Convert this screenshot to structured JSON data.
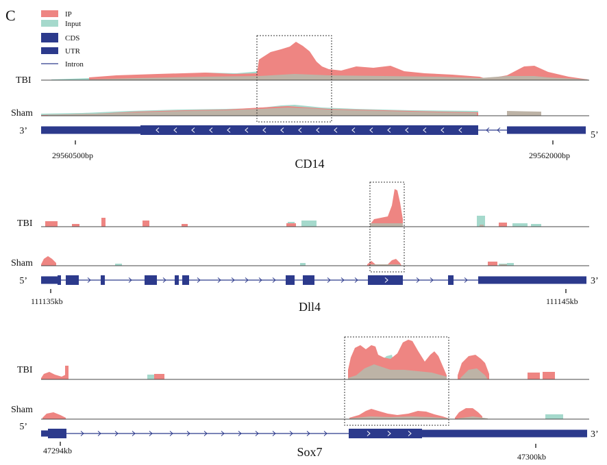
{
  "panel_label": "C",
  "colors": {
    "ip": "#EE8582",
    "input": "#A5D9CC",
    "overlap": "#BDB3A6",
    "gene": "#2C3A8C",
    "baseline": "#444444",
    "box": "#333333"
  },
  "legend": [
    {
      "label": "IP",
      "kind": "ip"
    },
    {
      "label": "Input",
      "kind": "input"
    },
    {
      "label": "CDS",
      "kind": "cds"
    },
    {
      "label": "UTR",
      "kind": "utr"
    },
    {
      "label": "Intron",
      "kind": "intron"
    }
  ],
  "panels": [
    {
      "gene": "CD14",
      "strand_left": "3’",
      "strand_right": "5’",
      "tracks": [
        {
          "label": "TBI"
        },
        {
          "label": "Sham"
        }
      ],
      "coords": [
        {
          "text": "29560500bp"
        },
        {
          "text": "29562000bp"
        }
      ]
    },
    {
      "gene": "Dll4",
      "strand_left": "5’",
      "strand_right": "3’",
      "tracks": [
        {
          "label": "TBI"
        },
        {
          "label": "Sham"
        }
      ],
      "coords": [
        {
          "text": "111135kb"
        },
        {
          "text": "111145kb"
        }
      ]
    },
    {
      "gene": "Sox7",
      "strand_left": "5’",
      "strand_right": "3’",
      "tracks": [
        {
          "label": "TBI"
        },
        {
          "label": "Sham"
        }
      ],
      "coords": [
        {
          "text": "47294kb"
        },
        {
          "text": "47300kb"
        }
      ]
    }
  ]
}
